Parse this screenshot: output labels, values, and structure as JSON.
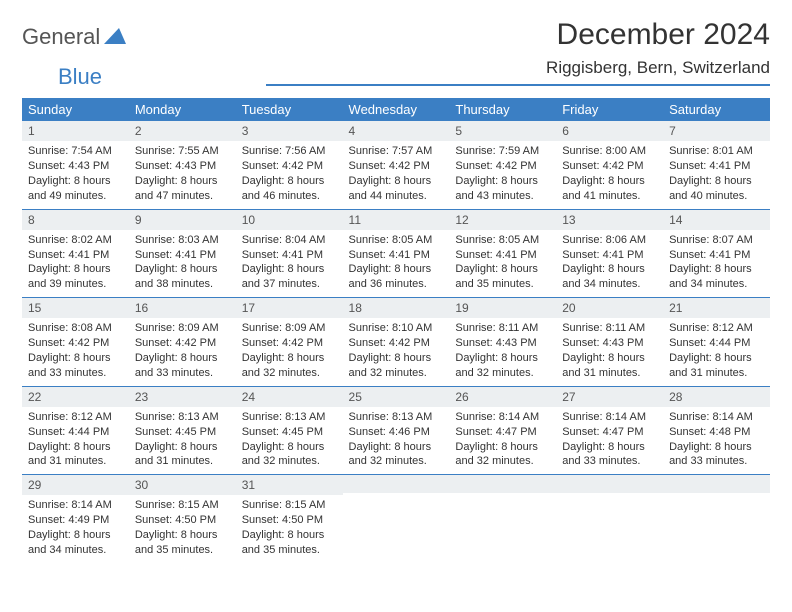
{
  "brand": {
    "part1": "General",
    "part2": "Blue"
  },
  "title": "December 2024",
  "location": "Riggisberg, Bern, Switzerland",
  "colors": {
    "accent": "#3b7fc4",
    "header_bg": "#3b7fc4",
    "header_text": "#ffffff",
    "daynum_bg": "#eceff1",
    "text": "#333333",
    "logo_gray": "#555555"
  },
  "fonts": {
    "title_size_pt": 30,
    "location_size_pt": 17,
    "header_size_pt": 13,
    "cell_size_pt": 11
  },
  "day_headers": [
    "Sunday",
    "Monday",
    "Tuesday",
    "Wednesday",
    "Thursday",
    "Friday",
    "Saturday"
  ],
  "weeks": [
    [
      {
        "n": "1",
        "sr": "Sunrise: 7:54 AM",
        "ss": "Sunset: 4:43 PM",
        "d1": "Daylight: 8 hours",
        "d2": "and 49 minutes."
      },
      {
        "n": "2",
        "sr": "Sunrise: 7:55 AM",
        "ss": "Sunset: 4:43 PM",
        "d1": "Daylight: 8 hours",
        "d2": "and 47 minutes."
      },
      {
        "n": "3",
        "sr": "Sunrise: 7:56 AM",
        "ss": "Sunset: 4:42 PM",
        "d1": "Daylight: 8 hours",
        "d2": "and 46 minutes."
      },
      {
        "n": "4",
        "sr": "Sunrise: 7:57 AM",
        "ss": "Sunset: 4:42 PM",
        "d1": "Daylight: 8 hours",
        "d2": "and 44 minutes."
      },
      {
        "n": "5",
        "sr": "Sunrise: 7:59 AM",
        "ss": "Sunset: 4:42 PM",
        "d1": "Daylight: 8 hours",
        "d2": "and 43 minutes."
      },
      {
        "n": "6",
        "sr": "Sunrise: 8:00 AM",
        "ss": "Sunset: 4:42 PM",
        "d1": "Daylight: 8 hours",
        "d2": "and 41 minutes."
      },
      {
        "n": "7",
        "sr": "Sunrise: 8:01 AM",
        "ss": "Sunset: 4:41 PM",
        "d1": "Daylight: 8 hours",
        "d2": "and 40 minutes."
      }
    ],
    [
      {
        "n": "8",
        "sr": "Sunrise: 8:02 AM",
        "ss": "Sunset: 4:41 PM",
        "d1": "Daylight: 8 hours",
        "d2": "and 39 minutes."
      },
      {
        "n": "9",
        "sr": "Sunrise: 8:03 AM",
        "ss": "Sunset: 4:41 PM",
        "d1": "Daylight: 8 hours",
        "d2": "and 38 minutes."
      },
      {
        "n": "10",
        "sr": "Sunrise: 8:04 AM",
        "ss": "Sunset: 4:41 PM",
        "d1": "Daylight: 8 hours",
        "d2": "and 37 minutes."
      },
      {
        "n": "11",
        "sr": "Sunrise: 8:05 AM",
        "ss": "Sunset: 4:41 PM",
        "d1": "Daylight: 8 hours",
        "d2": "and 36 minutes."
      },
      {
        "n": "12",
        "sr": "Sunrise: 8:05 AM",
        "ss": "Sunset: 4:41 PM",
        "d1": "Daylight: 8 hours",
        "d2": "and 35 minutes."
      },
      {
        "n": "13",
        "sr": "Sunrise: 8:06 AM",
        "ss": "Sunset: 4:41 PM",
        "d1": "Daylight: 8 hours",
        "d2": "and 34 minutes."
      },
      {
        "n": "14",
        "sr": "Sunrise: 8:07 AM",
        "ss": "Sunset: 4:41 PM",
        "d1": "Daylight: 8 hours",
        "d2": "and 34 minutes."
      }
    ],
    [
      {
        "n": "15",
        "sr": "Sunrise: 8:08 AM",
        "ss": "Sunset: 4:42 PM",
        "d1": "Daylight: 8 hours",
        "d2": "and 33 minutes."
      },
      {
        "n": "16",
        "sr": "Sunrise: 8:09 AM",
        "ss": "Sunset: 4:42 PM",
        "d1": "Daylight: 8 hours",
        "d2": "and 33 minutes."
      },
      {
        "n": "17",
        "sr": "Sunrise: 8:09 AM",
        "ss": "Sunset: 4:42 PM",
        "d1": "Daylight: 8 hours",
        "d2": "and 32 minutes."
      },
      {
        "n": "18",
        "sr": "Sunrise: 8:10 AM",
        "ss": "Sunset: 4:42 PM",
        "d1": "Daylight: 8 hours",
        "d2": "and 32 minutes."
      },
      {
        "n": "19",
        "sr": "Sunrise: 8:11 AM",
        "ss": "Sunset: 4:43 PM",
        "d1": "Daylight: 8 hours",
        "d2": "and 32 minutes."
      },
      {
        "n": "20",
        "sr": "Sunrise: 8:11 AM",
        "ss": "Sunset: 4:43 PM",
        "d1": "Daylight: 8 hours",
        "d2": "and 31 minutes."
      },
      {
        "n": "21",
        "sr": "Sunrise: 8:12 AM",
        "ss": "Sunset: 4:44 PM",
        "d1": "Daylight: 8 hours",
        "d2": "and 31 minutes."
      }
    ],
    [
      {
        "n": "22",
        "sr": "Sunrise: 8:12 AM",
        "ss": "Sunset: 4:44 PM",
        "d1": "Daylight: 8 hours",
        "d2": "and 31 minutes."
      },
      {
        "n": "23",
        "sr": "Sunrise: 8:13 AM",
        "ss": "Sunset: 4:45 PM",
        "d1": "Daylight: 8 hours",
        "d2": "and 31 minutes."
      },
      {
        "n": "24",
        "sr": "Sunrise: 8:13 AM",
        "ss": "Sunset: 4:45 PM",
        "d1": "Daylight: 8 hours",
        "d2": "and 32 minutes."
      },
      {
        "n": "25",
        "sr": "Sunrise: 8:13 AM",
        "ss": "Sunset: 4:46 PM",
        "d1": "Daylight: 8 hours",
        "d2": "and 32 minutes."
      },
      {
        "n": "26",
        "sr": "Sunrise: 8:14 AM",
        "ss": "Sunset: 4:47 PM",
        "d1": "Daylight: 8 hours",
        "d2": "and 32 minutes."
      },
      {
        "n": "27",
        "sr": "Sunrise: 8:14 AM",
        "ss": "Sunset: 4:47 PM",
        "d1": "Daylight: 8 hours",
        "d2": "and 33 minutes."
      },
      {
        "n": "28",
        "sr": "Sunrise: 8:14 AM",
        "ss": "Sunset: 4:48 PM",
        "d1": "Daylight: 8 hours",
        "d2": "and 33 minutes."
      }
    ],
    [
      {
        "n": "29",
        "sr": "Sunrise: 8:14 AM",
        "ss": "Sunset: 4:49 PM",
        "d1": "Daylight: 8 hours",
        "d2": "and 34 minutes."
      },
      {
        "n": "30",
        "sr": "Sunrise: 8:15 AM",
        "ss": "Sunset: 4:50 PM",
        "d1": "Daylight: 8 hours",
        "d2": "and 35 minutes."
      },
      {
        "n": "31",
        "sr": "Sunrise: 8:15 AM",
        "ss": "Sunset: 4:50 PM",
        "d1": "Daylight: 8 hours",
        "d2": "and 35 minutes."
      },
      null,
      null,
      null,
      null
    ]
  ]
}
